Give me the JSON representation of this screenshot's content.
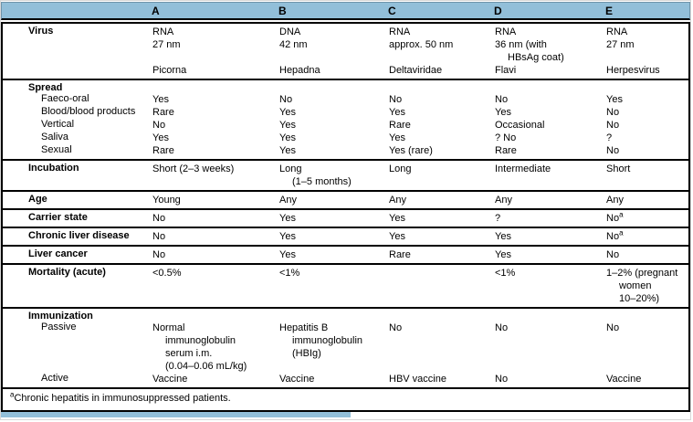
{
  "colors": {
    "header_blue": "#92bfd9",
    "border": "#000000",
    "background": "#ffffff"
  },
  "table": {
    "columns": [
      "A",
      "B",
      "C",
      "D",
      "E"
    ],
    "row_label_header": "",
    "blocks": [
      {
        "rows": [
          {
            "label": "Virus",
            "bold": true,
            "cells": [
              [
                {
                  "t": "RNA"
                },
                {
                  "t": "27 nm"
                },
                {
                  "spacer": true
                },
                {
                  "t": "Picorna"
                }
              ],
              [
                {
                  "t": "DNA"
                },
                {
                  "t": "42 nm"
                },
                {
                  "spacer": true
                },
                {
                  "t": "Hepadna"
                }
              ],
              [
                {
                  "t": "RNA"
                },
                {
                  "t": "approx. 50 nm"
                },
                {
                  "spacer": true
                },
                {
                  "t": "Deltaviridae"
                }
              ],
              [
                {
                  "t": "RNA"
                },
                {
                  "t": "36 nm (with"
                },
                {
                  "t": "HBsAg coat)",
                  "cont": true
                },
                {
                  "t": "Flavi"
                }
              ],
              [
                {
                  "t": "RNA"
                },
                {
                  "t": "27 nm"
                },
                {
                  "spacer": true
                },
                {
                  "t": "Herpesvirus"
                }
              ]
            ]
          }
        ]
      },
      {
        "rows": [
          {
            "label": "Spread",
            "bold": true
          },
          {
            "label": "Faeco-oral",
            "indent": true,
            "cells": [
              "Yes",
              "No",
              "No",
              "No",
              "Yes"
            ]
          },
          {
            "label": "Blood/blood products",
            "indent": true,
            "cells": [
              "Rare",
              "Yes",
              "Yes",
              "Yes",
              "No"
            ]
          },
          {
            "label": "Vertical",
            "indent": true,
            "cells": [
              "No",
              "Yes",
              "Rare",
              "Occasional",
              "No"
            ]
          },
          {
            "label": "Saliva",
            "indent": true,
            "cells": [
              "Yes",
              "Yes",
              "Yes",
              "? No",
              "?"
            ]
          },
          {
            "label": "Sexual",
            "indent": true,
            "cells": [
              "Rare",
              "Yes",
              "Yes (rare)",
              "Rare",
              "No"
            ]
          }
        ]
      },
      {
        "rows": [
          {
            "label": "Incubation",
            "bold": true,
            "cells": [
              "Short (2–3 weeks)",
              [
                {
                  "t": "Long"
                },
                {
                  "t": "(1–5 months)",
                  "cont": true
                }
              ],
              "Long",
              "Intermediate",
              "Short"
            ]
          }
        ]
      },
      {
        "rows": [
          {
            "label": "Age",
            "bold": true,
            "cells": [
              "Young",
              "Any",
              "Any",
              "Any",
              "Any"
            ]
          }
        ]
      },
      {
        "rows": [
          {
            "label": "Carrier state",
            "bold": true,
            "cells": [
              "No",
              "Yes",
              "Yes",
              "?",
              {
                "t": "No",
                "sup": "a"
              }
            ]
          }
        ]
      },
      {
        "rows": [
          {
            "label": "Chronic liver disease",
            "bold": true,
            "cells": [
              "No",
              "Yes",
              "Yes",
              "Yes",
              {
                "t": "No",
                "sup": "a"
              }
            ]
          }
        ]
      },
      {
        "rows": [
          {
            "label": "Liver cancer",
            "bold": true,
            "cells": [
              "No",
              "Yes",
              "Rare",
              "Yes",
              "No"
            ]
          }
        ]
      },
      {
        "rows": [
          {
            "label": "Mortality (acute)",
            "bold": true,
            "cells": [
              "<0.5%",
              "<1%",
              "",
              "<1%",
              [
                {
                  "t": "1–2% (pregnant"
                },
                {
                  "t": "women",
                  "cont": true
                },
                {
                  "t": "10–20%)",
                  "cont": true
                }
              ]
            ]
          }
        ]
      },
      {
        "rows": [
          {
            "label": "Immunization",
            "bold": true
          },
          {
            "label": "Passive",
            "indent": true,
            "cells": [
              [
                {
                  "t": "Normal"
                },
                {
                  "t": "immunoglobulin",
                  "cont": true
                },
                {
                  "t": "serum i.m.",
                  "cont": true
                },
                {
                  "t": "(0.04–0.06 mL/kg)",
                  "cont": true
                }
              ],
              [
                {
                  "t": "Hepatitis B"
                },
                {
                  "t": "immunoglobulin",
                  "cont": true
                },
                {
                  "t": "(HBIg)",
                  "cont": true
                }
              ],
              "No",
              "No",
              "No"
            ]
          },
          {
            "label": "Active",
            "indent": true,
            "cells": [
              "Vaccine",
              "Vaccine",
              "HBV vaccine",
              "No",
              "Vaccine"
            ]
          }
        ]
      }
    ]
  },
  "footnote": {
    "marker": "a",
    "text": "Chronic hepatitis in immunosuppressed patients."
  }
}
